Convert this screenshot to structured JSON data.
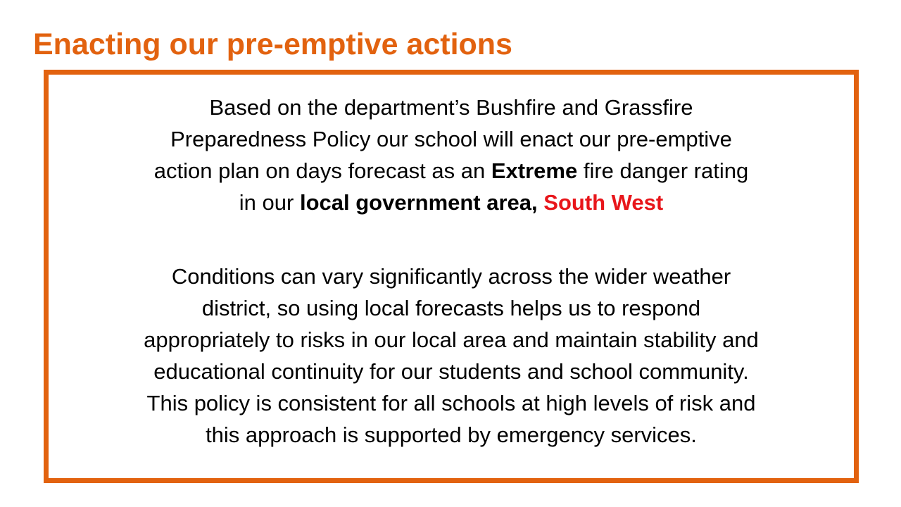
{
  "title": {
    "text": "Enacting our pre-emptive actions",
    "color": "#e2620f"
  },
  "box": {
    "border_color": "#e2620f",
    "paragraphs": [
      {
        "lines": [
          [
            {
              "text": "Based on the department’s Bushfire and Grassfire"
            }
          ],
          [
            {
              "text": "Preparedness Policy our school will enact our pre-emptive"
            }
          ],
          [
            {
              "text": "action plan on days forecast as an "
            },
            {
              "text": "Extreme",
              "bold": true
            },
            {
              "text": " fire danger rating"
            }
          ],
          [
            {
              "text": "in our "
            },
            {
              "text": "local government area, ",
              "bold": true
            },
            {
              "text": "South West",
              "bold": true,
              "color": "#e8161b"
            }
          ]
        ]
      },
      {
        "lines": [
          [
            {
              "text": "Conditions can vary significantly across the wider weather"
            }
          ],
          [
            {
              "text": "district, so using local forecasts helps us to respond"
            }
          ],
          [
            {
              "text": "appropriately to risks in our local area and maintain stability and"
            }
          ],
          [
            {
              "text": "educational continuity for our students and school community."
            }
          ],
          [
            {
              "text": "This policy is consistent for all schools at high levels of risk and"
            }
          ],
          [
            {
              "text": "this approach is supported by emergency services."
            }
          ]
        ]
      }
    ]
  }
}
